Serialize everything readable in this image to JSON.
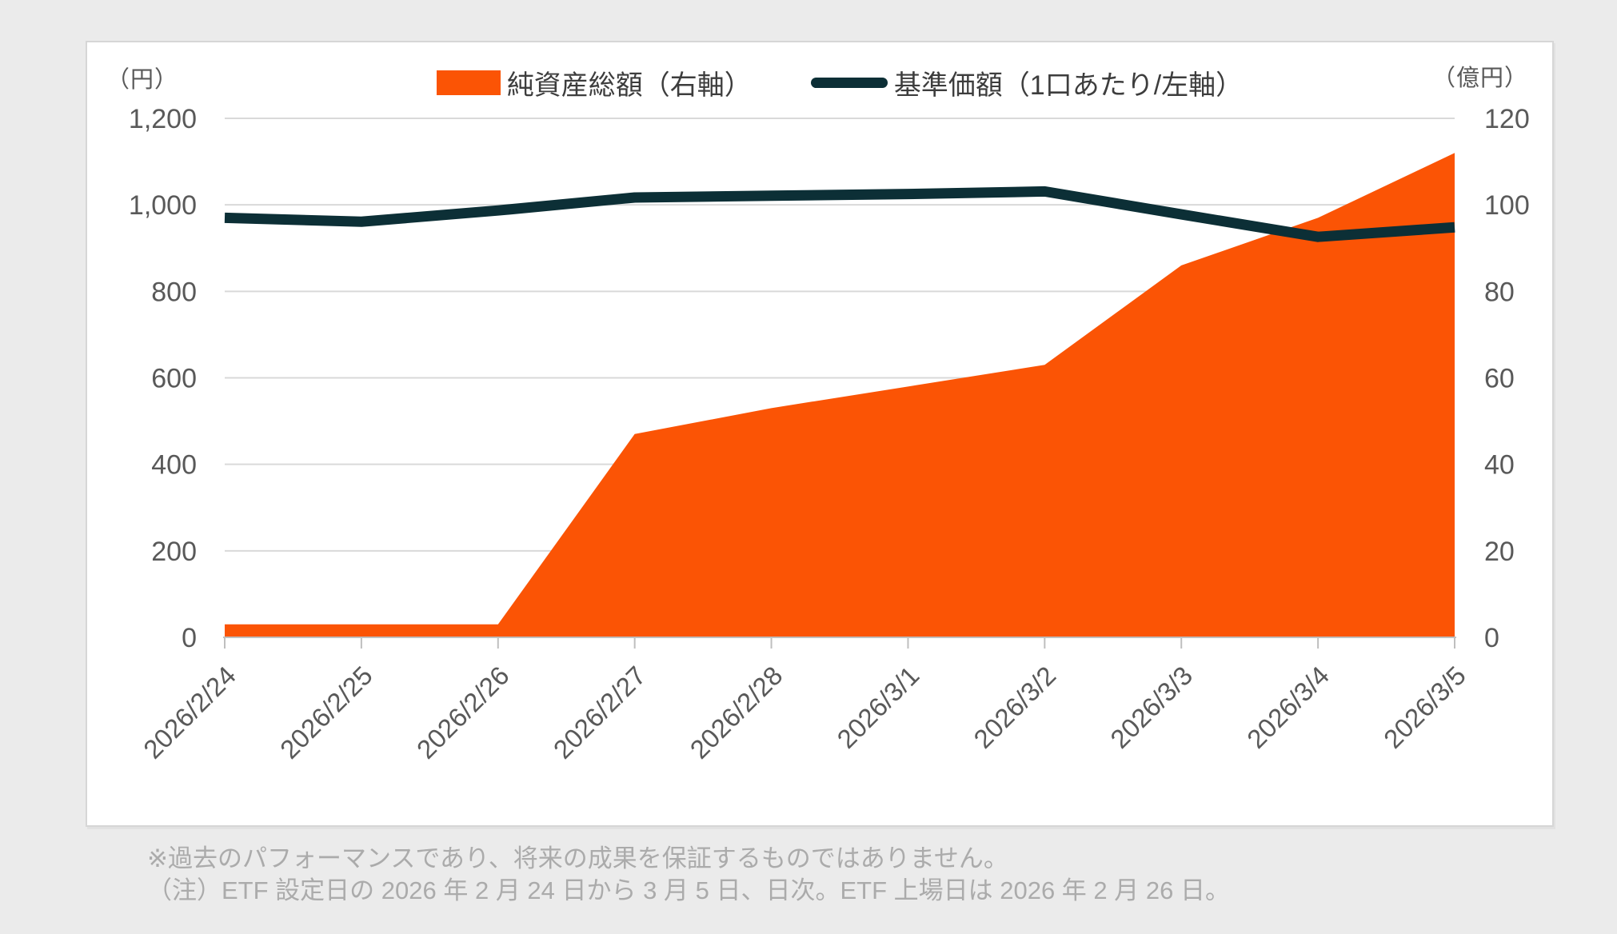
{
  "chart_data": {
    "type": "combo",
    "categories": [
      "2026/2/24",
      "2026/2/25",
      "2026/2/26",
      "2026/2/27",
      "2026/2/28",
      "2026/3/1",
      "2026/3/2",
      "2026/3/3",
      "2026/3/4",
      "2026/3/5"
    ],
    "series": [
      {
        "name": "純資産総額（右軸）",
        "type": "area",
        "axis": "right",
        "color": "#fb5405",
        "values": [
          3,
          3,
          3,
          47,
          53,
          58,
          63,
          86,
          97,
          112
        ]
      },
      {
        "name": "基準価額（1口あたり/左軸）",
        "type": "line",
        "axis": "left",
        "color": "#0c2f36",
        "values": [
          970,
          961,
          987,
          1017,
          1021,
          1025,
          1031,
          978,
          926,
          948
        ]
      }
    ],
    "left_axis": {
      "unit": "（円）",
      "min": 0,
      "max": 1200,
      "step": 200,
      "tick_labels": [
        "0",
        "200",
        "400",
        "600",
        "800",
        "1,000",
        "1,200"
      ]
    },
    "right_axis": {
      "unit": "（億円）",
      "min": 0,
      "max": 120,
      "step": 20,
      "tick_labels": [
        "0",
        "20",
        "40",
        "60",
        "80",
        "100",
        "120"
      ]
    },
    "title": "",
    "xlabel": "",
    "grid": true,
    "legend_position": "top"
  },
  "notes": {
    "line1": "※過去のパフォーマンスであり、将来の成果を保証するものではありません。",
    "line2": "（注）ETF 設定日の 2026 年 2 月 24 日から 3 月 5 日、日次。ETF 上場日は 2026 年 2 月 26 日。"
  },
  "colors": {
    "background": "#ebebeb",
    "card": "#ffffff",
    "gridline": "#d9d9d9",
    "axis_line": "#bfbfbf",
    "axis_text": "#595959",
    "legend_text": "#3d3d3d",
    "note_text": "#ababab"
  }
}
